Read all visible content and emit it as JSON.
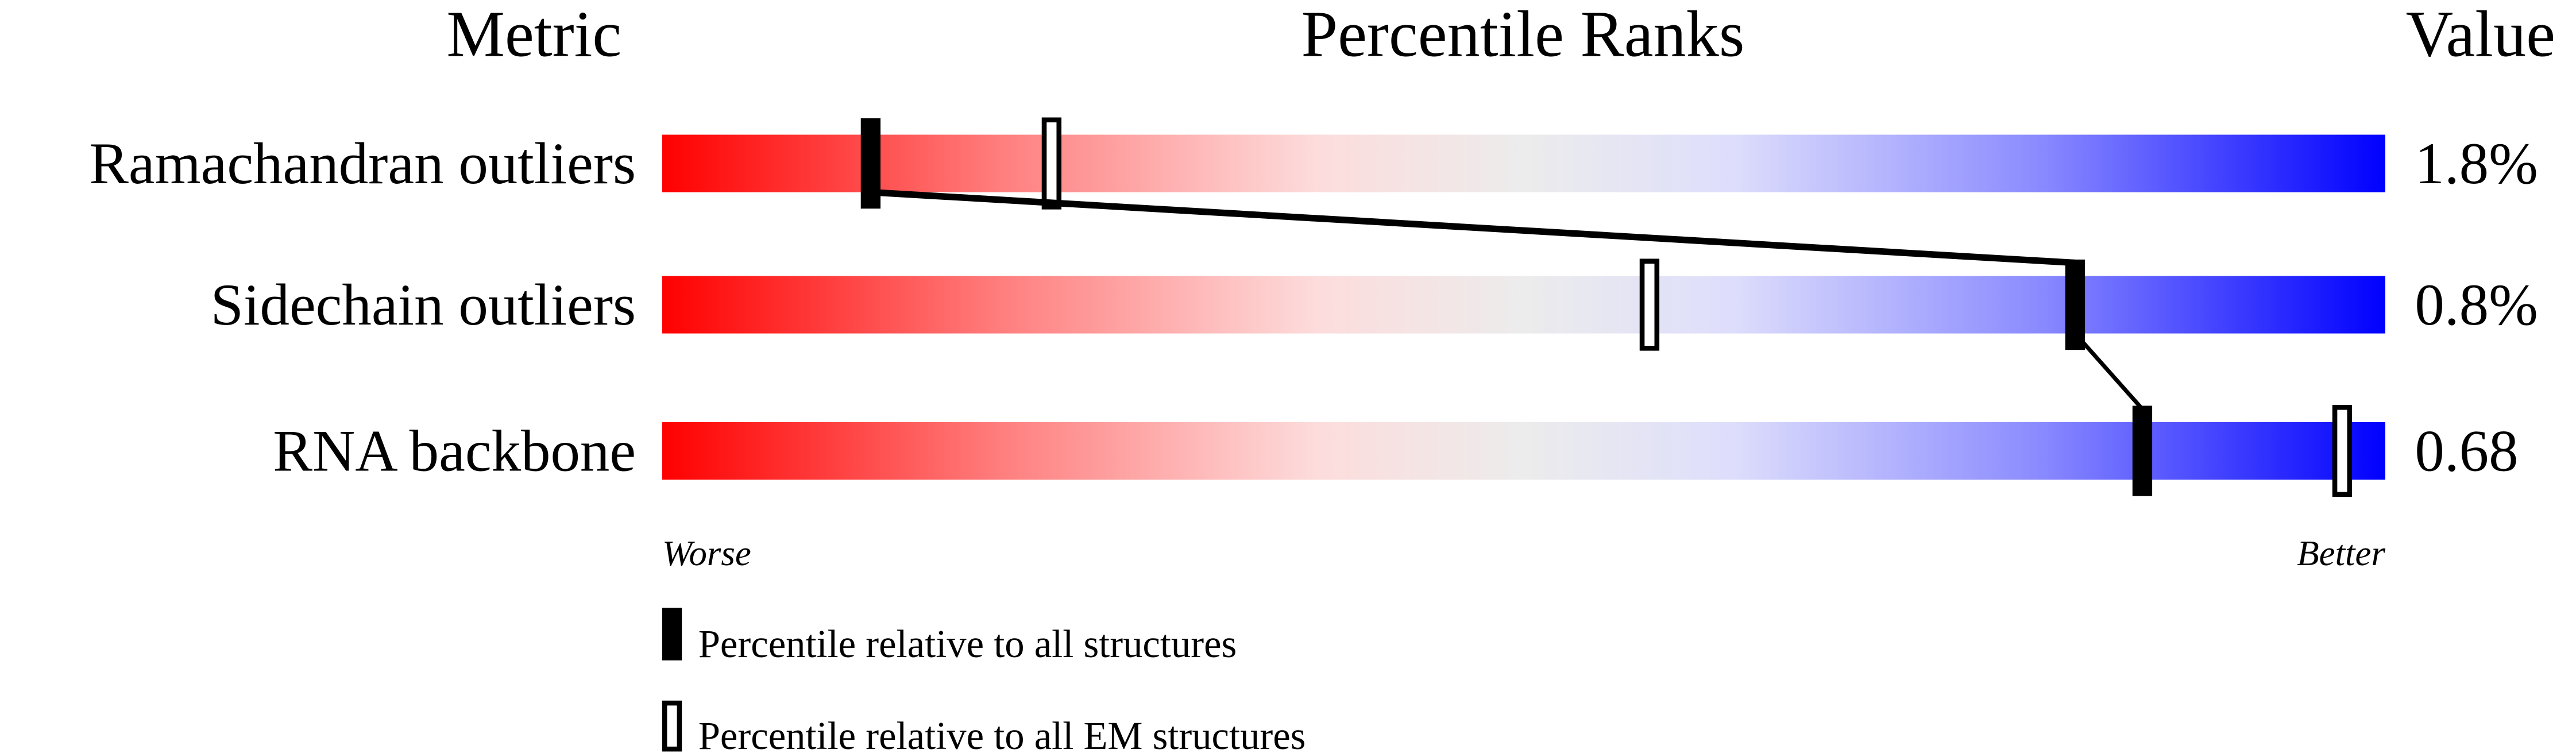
{
  "chart_data": {
    "type": "bar",
    "headers": {
      "metric": "Metric",
      "ranks": "Percentile Ranks",
      "value": "Value"
    },
    "xlim": [
      0,
      100
    ],
    "axis_labels": {
      "left": "Worse",
      "right": "Better"
    },
    "rows": [
      {
        "metric": "Ramachandran outliers",
        "value": "1.8%",
        "percentile_all": 12.1,
        "percentile_em": 22.6
      },
      {
        "metric": "Sidechain outliers",
        "value": "0.8%",
        "percentile_all": 82.0,
        "percentile_em": 57.3
      },
      {
        "metric": "RNA backbone",
        "value": "0.68",
        "percentile_all": 85.9,
        "percentile_em": 97.5
      }
    ],
    "legend": [
      {
        "marker": "filled",
        "label": "Percentile relative to all structures"
      },
      {
        "marker": "open",
        "label": "Percentile relative to all EM structures"
      }
    ],
    "gradient_colors": [
      "#ff0000",
      "#ff8080",
      "#fddcdc",
      "#ececec",
      "#dedefc",
      "#8080ff",
      "#0000ff"
    ]
  }
}
